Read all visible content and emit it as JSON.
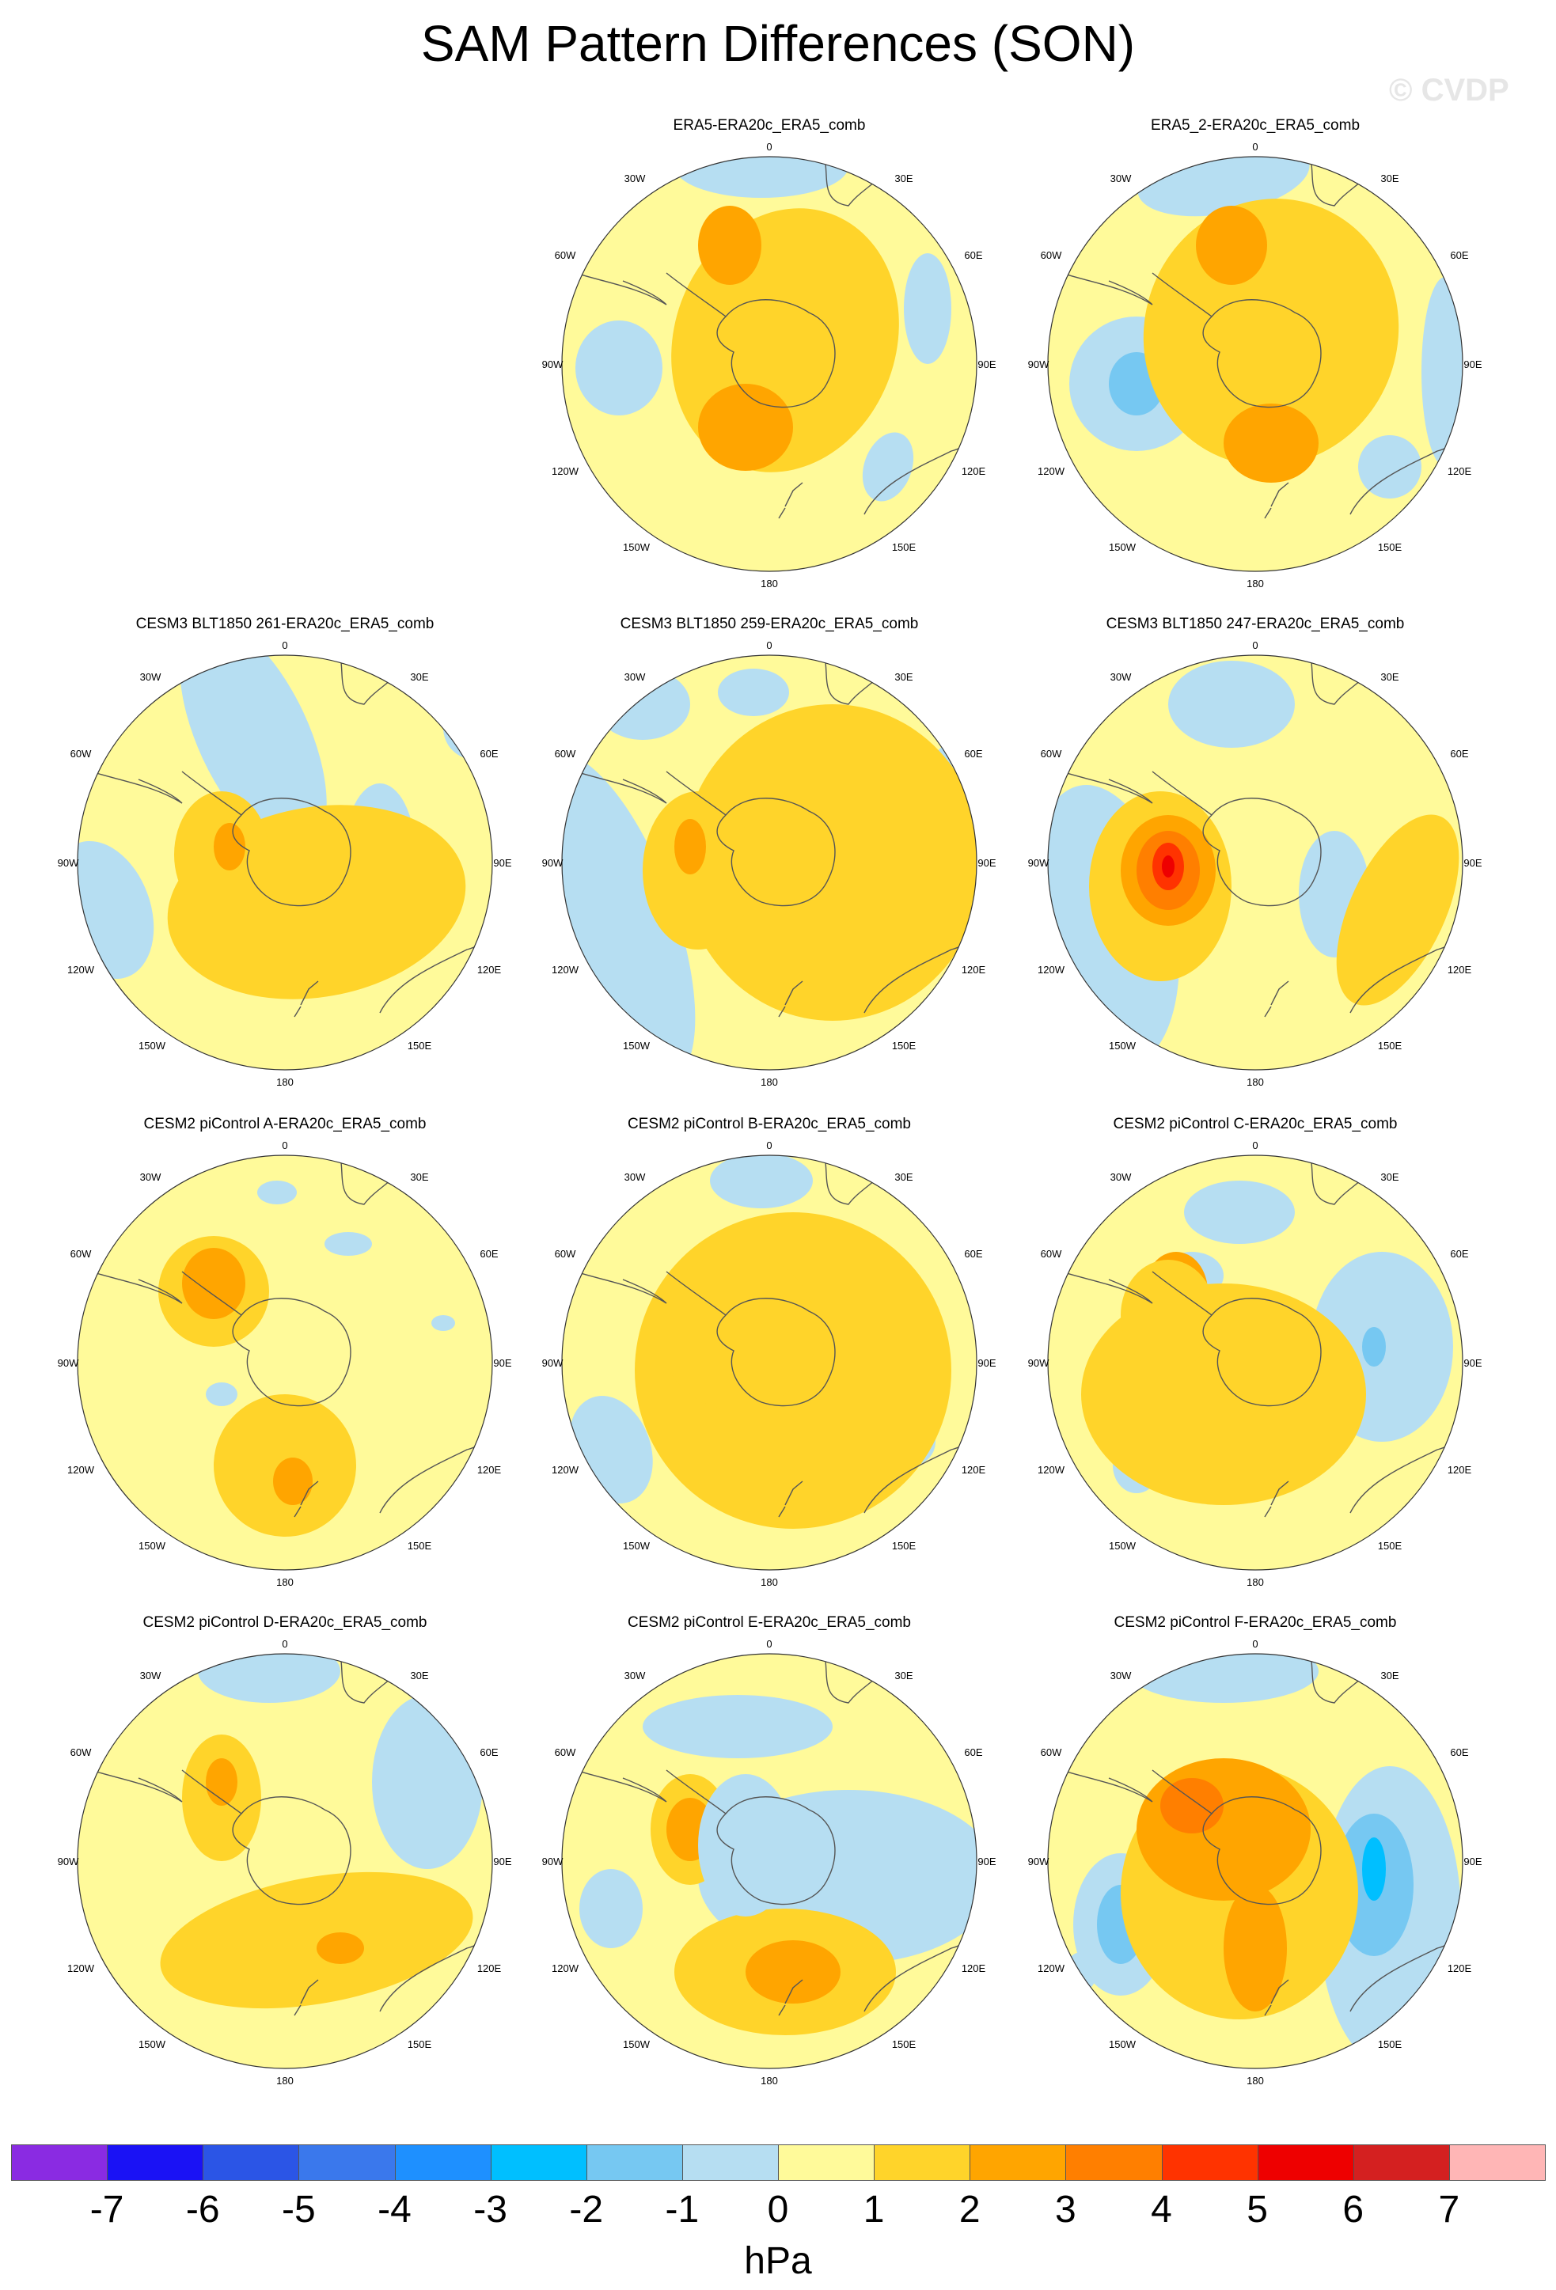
{
  "title": "SAM Pattern Differences (SON)",
  "watermark": "© CVDP",
  "lon_labels": {
    "top": "0",
    "bottom": "180",
    "w30": "30W",
    "e30": "30E",
    "w60": "60W",
    "e60": "60E",
    "w90": "90W",
    "e90": "90E",
    "w120": "120W",
    "e120": "120E",
    "w150": "150W",
    "e150": "150E"
  },
  "panels": [
    {
      "title": "ERA5-ERA20c_ERA5_comb"
    },
    {
      "title": "ERA5_2-ERA20c_ERA5_comb"
    },
    {
      "title": "CESM3 BLT1850 261-ERA20c_ERA5_comb"
    },
    {
      "title": "CESM3 BLT1850 259-ERA20c_ERA5_comb"
    },
    {
      "title": "CESM3 BLT1850 247-ERA20c_ERA5_comb"
    },
    {
      "title": "CESM2 piControl A-ERA20c_ERA5_comb"
    },
    {
      "title": "CESM2 piControl B-ERA20c_ERA5_comb"
    },
    {
      "title": "CESM2 piControl C-ERA20c_ERA5_comb"
    },
    {
      "title": "CESM2 piControl D-ERA20c_ERA5_comb"
    },
    {
      "title": "CESM2 piControl E-ERA20c_ERA5_comb"
    },
    {
      "title": "CESM2 piControl F-ERA20c_ERA5_comb"
    }
  ],
  "colorbar": {
    "ticks": [
      "-7",
      "-6",
      "-5",
      "-4",
      "-3",
      "-2",
      "-1",
      "0",
      "1",
      "2",
      "3",
      "4",
      "5",
      "6",
      "7"
    ],
    "colors": [
      "#8a2be2",
      "#1a12f5",
      "#2b55e6",
      "#3a78ec",
      "#1e90ff",
      "#00bfff",
      "#76c8f2",
      "#b6def2",
      "#fffa9a",
      "#ffd42a",
      "#ffa500",
      "#ff7f00",
      "#ff3300",
      "#ee0000",
      "#d42020",
      "#ffb6b6"
    ],
    "units": "hPa"
  }
}
